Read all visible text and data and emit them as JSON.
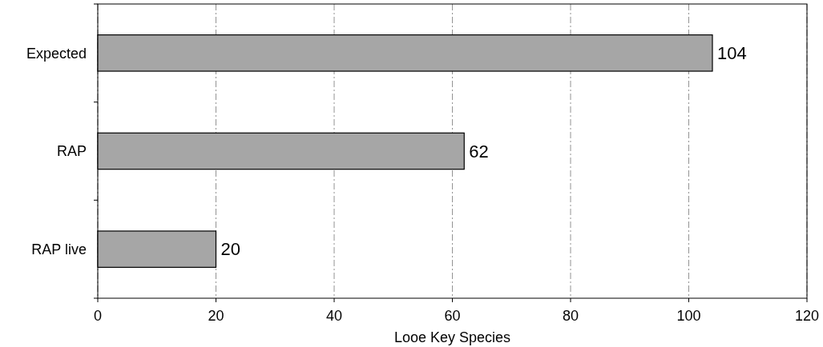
{
  "chart_data": {
    "type": "bar",
    "orientation": "horizontal",
    "categories": [
      "Expected",
      "RAP",
      "RAP live"
    ],
    "values": [
      104,
      62,
      20
    ],
    "color": "#a6a6a6",
    "xlabel": "Looe Key Species",
    "xlim": [
      0,
      120
    ],
    "xticks": [
      0,
      20,
      40,
      60,
      80,
      100,
      120
    ],
    "grid": "x",
    "data_labels": true
  }
}
